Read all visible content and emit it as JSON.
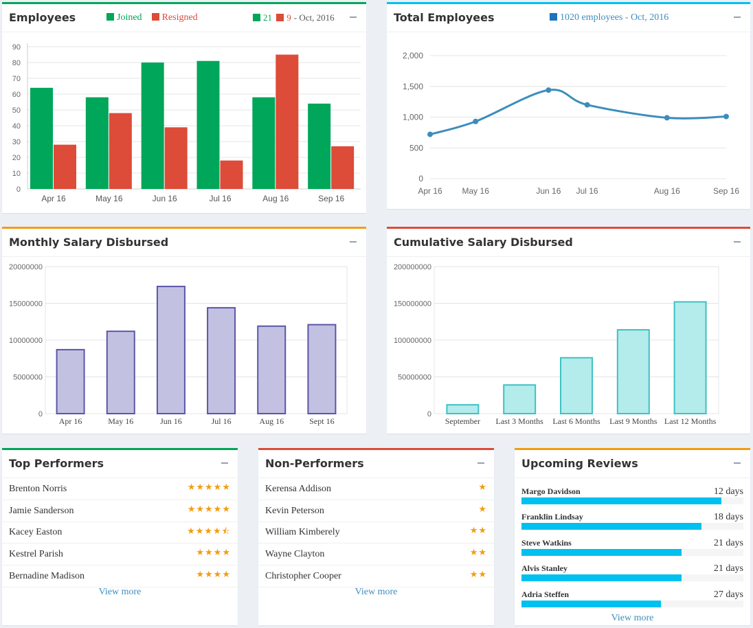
{
  "employees": {
    "title": "Employees",
    "legend": {
      "joined": "Joined",
      "resigned": "Resigned",
      "joined_count": "21",
      "resigned_count": "9",
      "period": "- Oct, 2016"
    },
    "colors": {
      "joined": "#00a65a",
      "resigned": "#dd4b39",
      "accent": "#00a65a"
    }
  },
  "total_employees": {
    "title": "Total Employees",
    "legend": "1020 employees - Oct, 2016",
    "colors": {
      "line": "#3c8dbc",
      "accent": "#00c0ef"
    }
  },
  "monthly_salary": {
    "title": "Monthly Salary Disbursed",
    "colors": {
      "fill": "#c3c1e1",
      "stroke": "#5b55a8",
      "accent": "#f39c12"
    }
  },
  "cumulative_salary": {
    "title": "Cumulative Salary Disbursed",
    "colors": {
      "fill": "#b4ebeb",
      "stroke": "#3ec1c4",
      "accent": "#dd4b39"
    }
  },
  "chart_data": [
    {
      "type": "bar",
      "categories": [
        "Apr 16",
        "May 16",
        "Jun 16",
        "Jul 16",
        "Aug 16",
        "Sep 16"
      ],
      "series": [
        {
          "name": "Joined",
          "values": [
            64,
            58,
            80,
            81,
            58,
            54
          ]
        },
        {
          "name": "Resigned",
          "values": [
            28,
            48,
            39,
            18,
            85,
            27
          ]
        }
      ],
      "title": "Employees",
      "ylim": [
        0,
        90
      ],
      "yticks": [
        "0",
        "10",
        "20",
        "30",
        "40",
        "50",
        "60",
        "70",
        "80",
        "90"
      ],
      "grid": true
    },
    {
      "type": "line",
      "categories": [
        "Apr 16",
        "May 16",
        "Jun 16",
        "Jul 16",
        "Aug 16",
        "Sep 16"
      ],
      "values": [
        720,
        930,
        1440,
        1200,
        990,
        1010
      ],
      "title": "Total Employees",
      "ylim": [
        0,
        2000
      ],
      "yticks": [
        "0",
        "500",
        "1,000",
        "1,500",
        "2,000"
      ],
      "grid": true
    },
    {
      "type": "bar",
      "categories": [
        "Apr 16",
        "May 16",
        "Jun 16",
        "Jul 16",
        "Aug 16",
        "Sept 16"
      ],
      "values": [
        8700000,
        11200000,
        17300000,
        14400000,
        11900000,
        12100000
      ],
      "title": "Monthly Salary Disbursed",
      "ylim": [
        0,
        20000000
      ],
      "yticks": [
        "0",
        "5000000",
        "10000000",
        "15000000",
        "20000000"
      ],
      "grid": true
    },
    {
      "type": "bar",
      "categories": [
        "September",
        "Last 3 Months",
        "Last 6 Months",
        "Last 9 Months",
        "Last 12 Months"
      ],
      "values": [
        12000000,
        39000000,
        76000000,
        114000000,
        152000000
      ],
      "title": "Cumulative Salary Disbursed",
      "ylim": [
        0,
        200000000
      ],
      "yticks": [
        "0",
        "50000000",
        "100000000",
        "150000000",
        "200000000"
      ],
      "grid": true
    }
  ],
  "top_performers": {
    "title": "Top Performers",
    "view_more": "View more",
    "accent": "#00a65a",
    "items": [
      {
        "name": "Brenton Norris",
        "rating": 5
      },
      {
        "name": "Jamie Sanderson",
        "rating": 5
      },
      {
        "name": "Kacey Easton",
        "rating": 4.5
      },
      {
        "name": "Kestrel Parish",
        "rating": 4
      },
      {
        "name": "Bernadine Madison",
        "rating": 4
      }
    ]
  },
  "non_performers": {
    "title": "Non-Performers",
    "view_more": "View more",
    "accent": "#dd4b39",
    "items": [
      {
        "name": "Kerensa Addison",
        "rating": 1
      },
      {
        "name": "Kevin Peterson",
        "rating": 1
      },
      {
        "name": "William Kimberely",
        "rating": 2
      },
      {
        "name": "Wayne Clayton",
        "rating": 2
      },
      {
        "name": "Christopher Cooper",
        "rating": 2
      }
    ]
  },
  "upcoming_reviews": {
    "title": "Upcoming Reviews",
    "view_more": "View more",
    "accent": "#f39c12",
    "items": [
      {
        "name": "Margo Davidson",
        "days": "12 days",
        "progress": 0.9
      },
      {
        "name": "Franklin Lindsay",
        "days": "18 days",
        "progress": 0.81
      },
      {
        "name": "Steve Watkins",
        "days": "21 days",
        "progress": 0.72
      },
      {
        "name": "Alvis Stanley",
        "days": "21 days",
        "progress": 0.72
      },
      {
        "name": "Adria Steffen",
        "days": "27 days",
        "progress": 0.63
      }
    ]
  }
}
